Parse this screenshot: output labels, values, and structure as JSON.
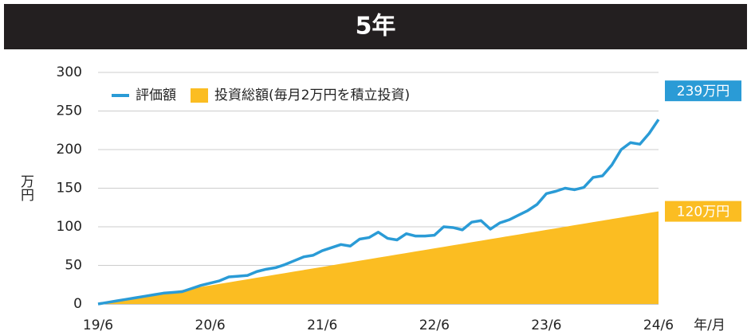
{
  "chart_data": {
    "type": "line_area",
    "title": "5年",
    "y_label": "万円",
    "x_label": "年/月",
    "categories": [
      "19/6",
      null,
      null,
      null,
      null,
      null,
      null,
      null,
      null,
      null,
      null,
      null,
      "20/6",
      null,
      null,
      null,
      null,
      null,
      null,
      null,
      null,
      null,
      null,
      null,
      "21/6",
      null,
      null,
      null,
      null,
      null,
      null,
      null,
      null,
      null,
      null,
      null,
      "22/6",
      null,
      null,
      null,
      null,
      null,
      null,
      null,
      null,
      null,
      null,
      null,
      "23/6",
      null,
      null,
      null,
      null,
      null,
      null,
      null,
      null,
      null,
      null,
      null,
      "24/6"
    ],
    "series": [
      {
        "name": "評価額",
        "kind": "line",
        "color": "#2a9bd6",
        "end_label": "239万円",
        "values": [
          0,
          2,
          4,
          6,
          8,
          10,
          12,
          14,
          15,
          16,
          20,
          24,
          27,
          30,
          35,
          36,
          37,
          42,
          45,
          47,
          51,
          56,
          61,
          63,
          69,
          73,
          77,
          75,
          84,
          86,
          93,
          85,
          83,
          91,
          88,
          88,
          89,
          100,
          99,
          96,
          106,
          108,
          97,
          105,
          109,
          115,
          121,
          129,
          143,
          146,
          150,
          148,
          151,
          164,
          166,
          180,
          200,
          209,
          207,
          221,
          239
        ]
      },
      {
        "name": "投資総額(毎月2万円を積立投資)",
        "kind": "area",
        "color": "#fbbd22",
        "end_label": "120万円",
        "values": [
          0,
          2,
          4,
          6,
          8,
          10,
          12,
          14,
          16,
          18,
          20,
          22,
          24,
          26,
          28,
          30,
          32,
          34,
          36,
          38,
          40,
          42,
          44,
          46,
          48,
          50,
          52,
          54,
          56,
          58,
          60,
          62,
          64,
          66,
          68,
          70,
          72,
          74,
          76,
          78,
          80,
          82,
          84,
          86,
          88,
          90,
          92,
          94,
          96,
          98,
          100,
          102,
          104,
          106,
          108,
          110,
          112,
          114,
          116,
          118,
          120
        ]
      }
    ],
    "ylim": [
      0,
      300
    ],
    "yticks": [
      0,
      50,
      100,
      150,
      200,
      250,
      300
    ],
    "grid": true,
    "legend": "top-left"
  }
}
